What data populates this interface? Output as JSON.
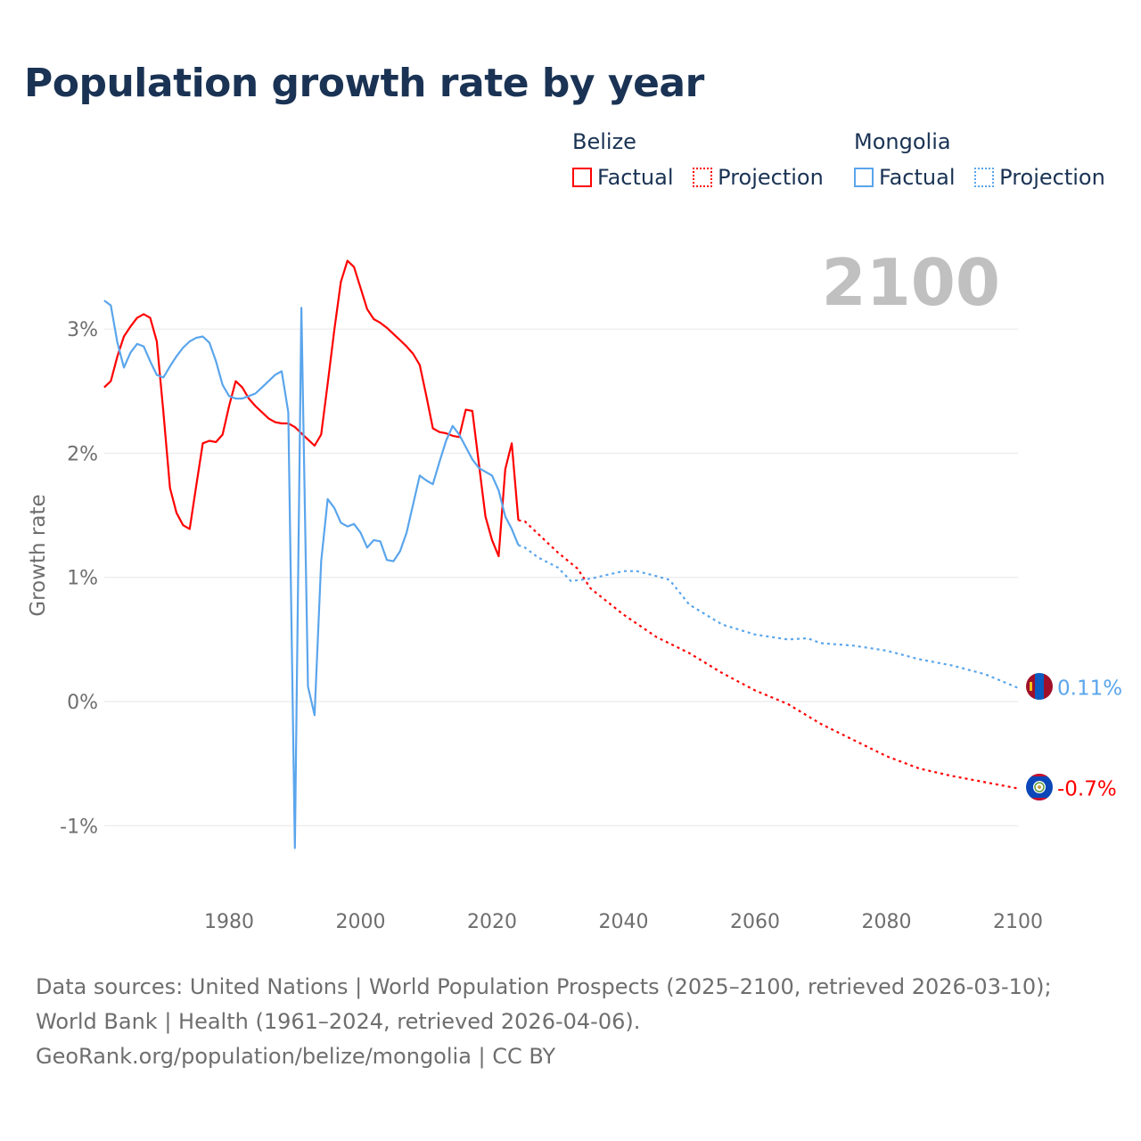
{
  "chart_data": {
    "type": "line",
    "title": "Population growth rate by year",
    "ylabel": "Growth rate",
    "xlabel": "",
    "xlim": [
      1961,
      2100
    ],
    "ylim": [
      -1.4,
      3.7
    ],
    "x_ticks": [
      1980,
      2000,
      2020,
      2040,
      2060,
      2080,
      2100
    ],
    "x_tick_labels": [
      "1980",
      "2000",
      "2020",
      "2040",
      "2060",
      "2080",
      "2100"
    ],
    "y_ticks": [
      -1,
      0,
      1,
      2,
      3
    ],
    "y_tick_labels": [
      "-1%",
      "0%",
      "1%",
      "2%",
      "3%"
    ],
    "grid": true,
    "year_label": "2100",
    "legend": {
      "placement": "top-right",
      "groups": [
        {
          "name": "Belize",
          "items": [
            "Factual",
            "Projection"
          ],
          "color": "#ff0000"
        },
        {
          "name": "Mongolia",
          "items": [
            "Factual",
            "Projection"
          ],
          "color": "#5aa5ec"
        }
      ]
    },
    "series": [
      {
        "name": "Belize Factual",
        "country": "Belize",
        "kind": "factual",
        "color": "#ff0000",
        "x_start": 1961,
        "values": [
          2.53,
          2.58,
          2.78,
          2.94,
          3.02,
          3.09,
          3.12,
          3.09,
          2.9,
          2.33,
          1.72,
          1.52,
          1.42,
          1.39,
          1.74,
          2.08,
          2.1,
          2.09,
          2.15,
          2.38,
          2.58,
          2.53,
          2.44,
          2.38,
          2.33,
          2.28,
          2.25,
          2.24,
          2.24,
          2.21,
          2.16,
          2.11,
          2.06,
          2.15,
          2.56,
          2.99,
          3.38,
          3.55,
          3.5,
          3.33,
          3.16,
          3.08,
          3.05,
          3.01,
          2.96,
          2.91,
          2.86,
          2.8,
          2.71,
          2.46,
          2.2,
          2.17,
          2.16,
          2.14,
          2.13,
          2.35,
          2.34,
          1.91,
          1.49,
          1.3,
          1.17,
          1.87,
          2.08,
          1.46
        ]
      },
      {
        "name": "Belize Projection",
        "country": "Belize",
        "kind": "projection",
        "color": "#ff0000",
        "x": [
          2024,
          2025,
          2030,
          2033,
          2035,
          2040,
          2045,
          2050,
          2055,
          2060,
          2065,
          2070,
          2075,
          2080,
          2085,
          2090,
          2095,
          2100
        ],
        "y": [
          1.46,
          1.45,
          1.2,
          1.07,
          0.91,
          0.7,
          0.52,
          0.39,
          0.23,
          0.09,
          -0.02,
          -0.18,
          -0.31,
          -0.44,
          -0.54,
          -0.6,
          -0.65,
          -0.7
        ]
      },
      {
        "name": "Mongolia Factual",
        "country": "Mongolia",
        "kind": "factual",
        "color": "#5aa5ec",
        "x_start": 1961,
        "values": [
          3.23,
          3.19,
          2.89,
          2.69,
          2.81,
          2.88,
          2.86,
          2.74,
          2.63,
          2.61,
          2.7,
          2.78,
          2.85,
          2.9,
          2.93,
          2.94,
          2.89,
          2.74,
          2.55,
          2.46,
          2.44,
          2.44,
          2.46,
          2.48,
          2.53,
          2.58,
          2.63,
          2.66,
          2.33,
          -1.18,
          3.17,
          0.12,
          -0.11,
          1.13,
          1.63,
          1.56,
          1.44,
          1.41,
          1.43,
          1.36,
          1.24,
          1.3,
          1.29,
          1.14,
          1.13,
          1.21,
          1.36,
          1.59,
          1.82,
          1.78,
          1.75,
          1.93,
          2.1,
          2.22,
          2.15,
          2.05,
          1.95,
          1.88,
          1.85,
          1.82,
          1.7,
          1.49,
          1.39,
          1.26
        ]
      },
      {
        "name": "Mongolia Projection",
        "country": "Mongolia",
        "kind": "projection",
        "color": "#5aa5ec",
        "x": [
          2024,
          2025,
          2027,
          2030,
          2032,
          2035,
          2040,
          2042,
          2045,
          2047,
          2050,
          2055,
          2060,
          2065,
          2068,
          2070,
          2075,
          2080,
          2085,
          2090,
          2095,
          2100
        ],
        "y": [
          1.26,
          1.24,
          1.16,
          1.08,
          0.97,
          0.99,
          1.05,
          1.05,
          1.01,
          0.98,
          0.78,
          0.62,
          0.54,
          0.5,
          0.51,
          0.47,
          0.45,
          0.41,
          0.34,
          0.29,
          0.22,
          0.11
        ]
      }
    ],
    "end_labels": [
      {
        "country": "Mongolia",
        "label": "0.11%",
        "value": 0.11,
        "color": "#5aa5ec"
      },
      {
        "country": "Belize",
        "label": "-0.7%",
        "value": -0.7,
        "color": "#ff0000"
      }
    ]
  },
  "footer": {
    "sources": "Data sources: United Nations | World Population Prospects (2025–2100, retrieved 2026-03-10); World Bank | Health (1961–2024, retrieved 2026-04-06).",
    "link": "GeoRank.org/population/belize/mongolia | CC BY"
  }
}
